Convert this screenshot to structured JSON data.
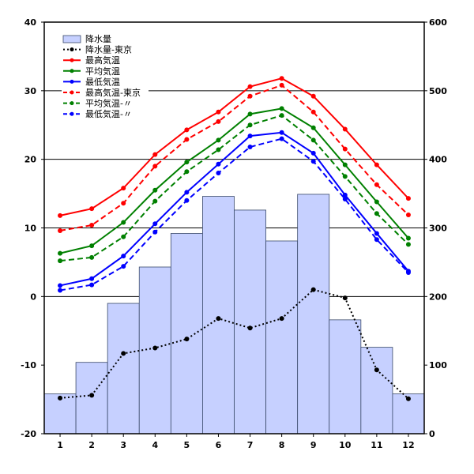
{
  "chart_data": {
    "type": "bar+line",
    "title": "",
    "categories": [
      "1",
      "2",
      "3",
      "4",
      "5",
      "6",
      "7",
      "8",
      "9",
      "10",
      "11",
      "12"
    ],
    "y_left": {
      "label": "",
      "range": [
        -20,
        40
      ],
      "ticks": [
        "40",
        "30",
        "20",
        "10",
        "0",
        "-10",
        "-20"
      ]
    },
    "y_right": {
      "label": "",
      "range": [
        0,
        600
      ],
      "ticks": [
        "600",
        "500",
        "400",
        "300",
        "200",
        "100",
        "0"
      ]
    },
    "gridlines": [
      30,
      20,
      10
    ],
    "precipitation": {
      "name": "降水量",
      "axis": "right",
      "values": [
        58,
        104,
        190,
        243,
        292,
        346,
        326,
        281,
        349,
        166,
        126,
        58
      ],
      "color": "#c6d0ff"
    },
    "lines": [
      {
        "name": "降水量-東京",
        "axis": "right",
        "color": "#000000",
        "style": "dotted",
        "values": [
          52,
          56,
          117,
          125,
          138,
          168,
          154,
          168,
          210,
          198,
          93,
          51
        ]
      },
      {
        "name": "最高気温",
        "axis": "left",
        "color": "#ff0000",
        "style": "solid",
        "values": [
          11.8,
          12.8,
          15.8,
          20.7,
          24.3,
          26.9,
          30.6,
          31.8,
          29.2,
          24.4,
          19.2,
          14.3
        ]
      },
      {
        "name": "平均気温",
        "axis": "left",
        "color": "#008000",
        "style": "solid",
        "values": [
          6.3,
          7.4,
          10.8,
          15.5,
          19.6,
          22.8,
          26.6,
          27.4,
          24.6,
          19.2,
          13.8,
          8.5
        ]
      },
      {
        "name": "最低気温",
        "axis": "left",
        "color": "#0000ff",
        "style": "solid",
        "values": [
          1.6,
          2.6,
          5.9,
          10.6,
          15.2,
          19.3,
          23.4,
          23.9,
          20.9,
          14.8,
          9.2,
          3.7
        ]
      },
      {
        "name": "最高気温-東京",
        "axis": "left",
        "color": "#ff0000",
        "style": "dashed",
        "values": [
          9.6,
          10.4,
          13.6,
          19.0,
          22.9,
          25.5,
          29.2,
          30.8,
          26.9,
          21.5,
          16.3,
          11.9
        ]
      },
      {
        "name": "平均気温-〃",
        "axis": "left",
        "color": "#008000",
        "style": "dashed",
        "values": [
          5.2,
          5.7,
          8.7,
          13.9,
          18.2,
          21.4,
          25.0,
          26.4,
          22.8,
          17.5,
          12.1,
          7.6
        ]
      },
      {
        "name": "最低気温-〃",
        "axis": "left",
        "color": "#0000ff",
        "style": "dashed",
        "values": [
          0.9,
          1.7,
          4.4,
          9.4,
          14.0,
          18.0,
          21.8,
          23.0,
          19.7,
          14.2,
          8.3,
          3.5
        ]
      }
    ],
    "legend_position": "top-left"
  }
}
